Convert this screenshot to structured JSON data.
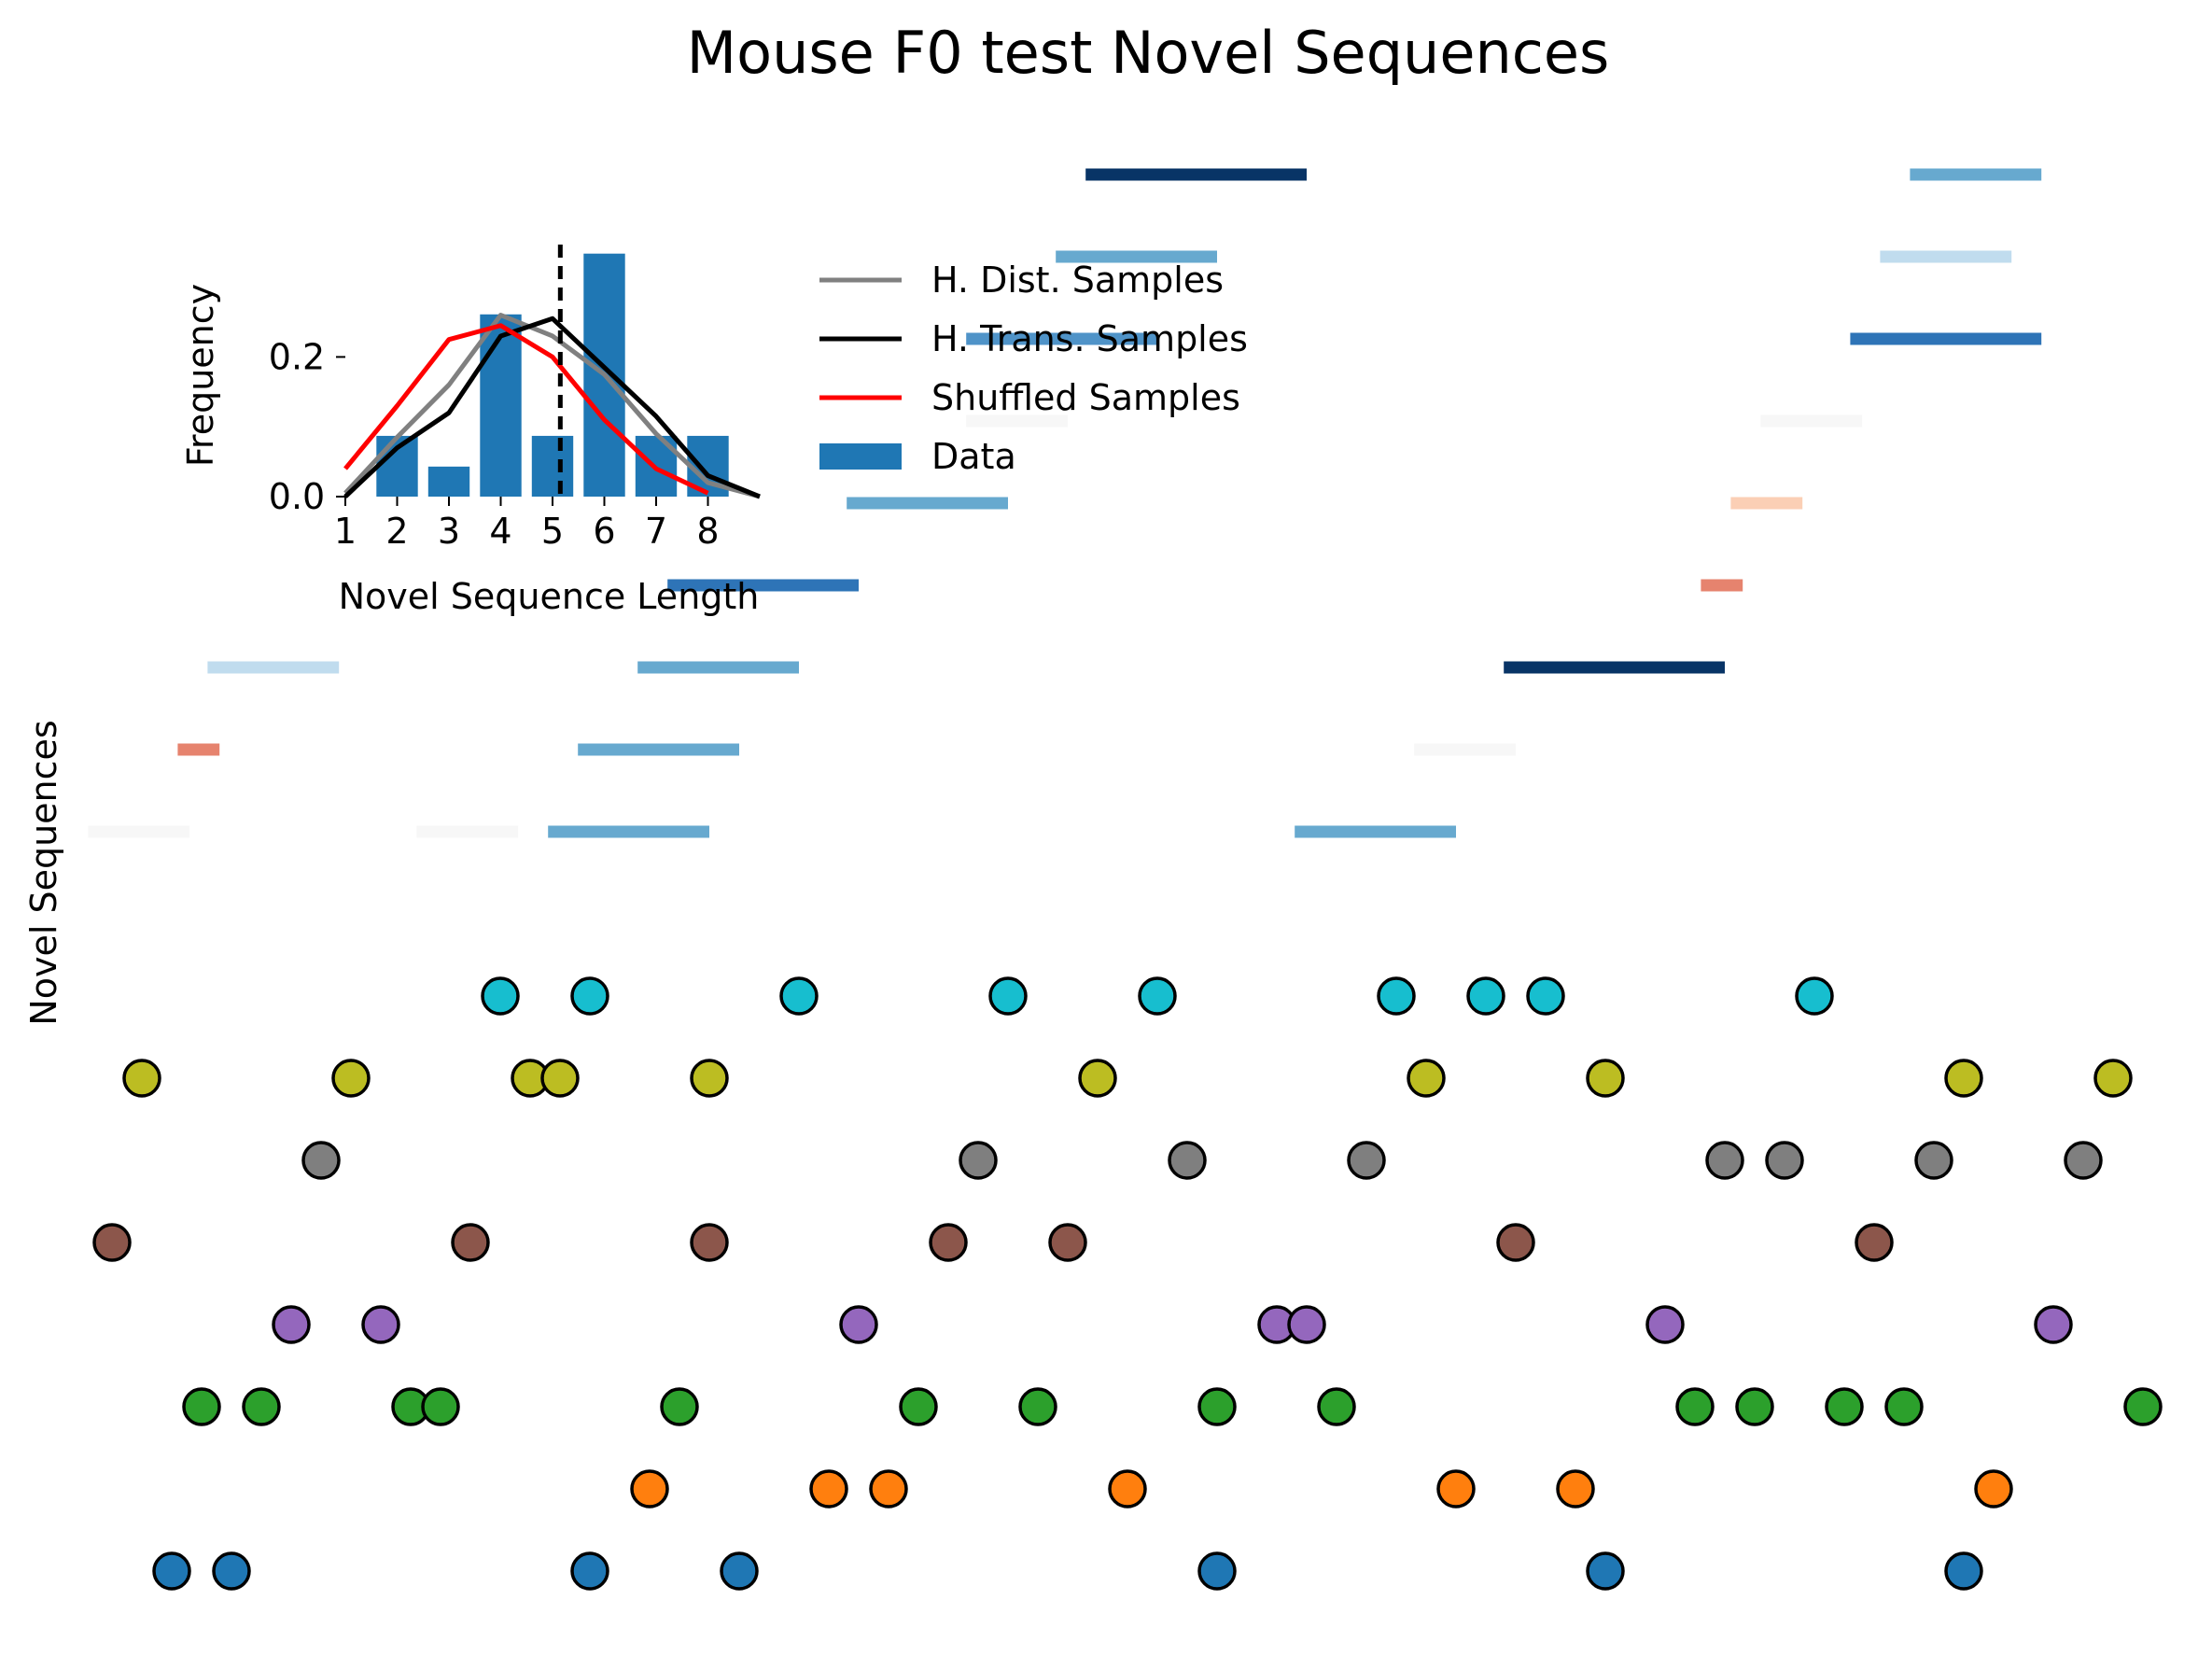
{
  "chart_data": [
    {
      "type": "scatter",
      "title": "Mouse F0 test Novel Sequences",
      "ylabel": "Novel Sequences",
      "xlim": [
        -0.5,
        34.5
      ],
      "ylim": [
        -0.7,
        17.7
      ],
      "grid": false,
      "axes_visible": false,
      "series": [
        {
          "color": "#1f77b4",
          "y": 0,
          "x": [
            1,
            2,
            8,
            10.5,
            18.5,
            25,
            31
          ]
        },
        {
          "color": "#ff7f0e",
          "y": 1,
          "x": [
            9,
            12,
            13,
            17,
            22.5,
            24.5,
            31.5
          ]
        },
        {
          "color": "#2ca02c",
          "y": 2,
          "x": [
            1.5,
            2.5,
            5,
            5.5,
            9.5,
            13.5,
            15.5,
            18.5,
            20.5,
            26.5,
            27.5,
            29,
            30,
            34
          ]
        },
        {
          "color": "#9467bd",
          "y": 3,
          "x": [
            3,
            4.5,
            12.5,
            19.5,
            20,
            26,
            32.5
          ]
        },
        {
          "color": "#8c564b",
          "y": 4,
          "x": [
            0,
            6,
            10,
            14,
            16,
            23.5,
            29.5
          ]
        },
        {
          "color": "#7f7f7f",
          "y": 5,
          "x": [
            3.5,
            14.5,
            18,
            21,
            27,
            28,
            30.5,
            33
          ]
        },
        {
          "color": "#bcbd22",
          "y": 6,
          "x": [
            0.5,
            4,
            7,
            7.5,
            10,
            16.5,
            22,
            25,
            31,
            33.5
          ]
        },
        {
          "color": "#17becf",
          "y": 7,
          "x": [
            6.5,
            8,
            11.5,
            15,
            17.5,
            21.5,
            23,
            24,
            28.5
          ]
        }
      ],
      "segments": [
        {
          "y": 9,
          "x0": -0.4,
          "x1": 1.3,
          "color": "#f7f7f7"
        },
        {
          "y": 9,
          "x0": 5.1,
          "x1": 6.8,
          "color": "#f7f7f7"
        },
        {
          "y": 9,
          "x0": 7.3,
          "x1": 10,
          "color": "#67a9cf"
        },
        {
          "y": 9,
          "x0": 19.8,
          "x1": 22.5,
          "color": "#67a9cf"
        },
        {
          "y": 10,
          "x0": 1.1,
          "x1": 1.8,
          "color": "#e6836e"
        },
        {
          "y": 10,
          "x0": 7.8,
          "x1": 10.5,
          "color": "#67a9cf"
        },
        {
          "y": 10,
          "x0": 21.8,
          "x1": 23.5,
          "color": "#f7f7f7"
        },
        {
          "y": 11,
          "x0": 1.6,
          "x1": 3.8,
          "color": "#c0dcee"
        },
        {
          "y": 11,
          "x0": 8.8,
          "x1": 11.5,
          "color": "#67a9cf"
        },
        {
          "y": 11,
          "x0": 23.3,
          "x1": 27,
          "color": "#083466"
        },
        {
          "y": 12,
          "x0": 9.3,
          "x1": 12.5,
          "color": "#2e74b7"
        },
        {
          "y": 12,
          "x0": 26.6,
          "x1": 27.3,
          "color": "#e6836e"
        },
        {
          "y": 13,
          "x0": 12.3,
          "x1": 15,
          "color": "#67a9cf"
        },
        {
          "y": 13,
          "x0": 27.1,
          "x1": 28.3,
          "color": "#fbcfb5"
        },
        {
          "y": 14,
          "x0": 14.3,
          "x1": 16,
          "color": "#f7f7f7"
        },
        {
          "y": 14,
          "x0": 27.6,
          "x1": 29.3,
          "color": "#f7f7f7"
        },
        {
          "y": 15,
          "x0": 14.3,
          "x1": 17.5,
          "color": "#4f93c8"
        },
        {
          "y": 15,
          "x0": 29.1,
          "x1": 32.3,
          "color": "#2e74b7"
        },
        {
          "y": 16,
          "x0": 15.8,
          "x1": 18.5,
          "color": "#67a9cf"
        },
        {
          "y": 16,
          "x0": 29.6,
          "x1": 31.8,
          "color": "#c0dcee"
        },
        {
          "y": 17,
          "x0": 16.3,
          "x1": 20,
          "color": "#083466"
        },
        {
          "y": 17,
          "x0": 30.1,
          "x1": 32.3,
          "color": "#67a9cf"
        }
      ]
    },
    {
      "type": "bar",
      "xlabel": "Novel Sequence Length",
      "ylabel": "Frequency",
      "categories": [
        "1",
        "2",
        "3",
        "4",
        "5",
        "6",
        "7",
        "8"
      ],
      "x_ticks": [
        1,
        2,
        3,
        4,
        5,
        6,
        7,
        8
      ],
      "y_ticks": [
        "0.0",
        "0.2"
      ],
      "xlim": [
        1,
        9
      ],
      "ylim": [
        0,
        0.36
      ],
      "bars": {
        "name": "Data",
        "color": "#1f77b4",
        "x": [
          2,
          3,
          4,
          5,
          6,
          7,
          8
        ],
        "values": [
          0.087,
          0.043,
          0.261,
          0.087,
          0.348,
          0.087,
          0.087
        ]
      },
      "mean_line": {
        "x": 5.15,
        "style": "dashed",
        "color": "#000000"
      },
      "series": [
        {
          "name": "H. Dist. Samples",
          "color": "#808080",
          "x": [
            1,
            2,
            3,
            4,
            5,
            6,
            7,
            8,
            9
          ],
          "values": [
            0.005,
            0.085,
            0.16,
            0.26,
            0.23,
            0.175,
            0.09,
            0.02,
            0.0
          ]
        },
        {
          "name": "H. Trans. Samples",
          "color": "#000000",
          "x": [
            1,
            2,
            3,
            4,
            5,
            6,
            7,
            8,
            9
          ],
          "values": [
            0.0,
            0.07,
            0.12,
            0.23,
            0.255,
            0.185,
            0.115,
            0.03,
            0.0
          ]
        },
        {
          "name": "Shuffled Samples",
          "color": "#ff0000",
          "x": [
            1,
            2,
            3,
            4,
            5,
            6,
            7,
            8
          ],
          "values": [
            0.04,
            0.13,
            0.225,
            0.245,
            0.2,
            0.11,
            0.04,
            0.005
          ]
        }
      ],
      "legend": {
        "placement": "right of inset",
        "entries": [
          {
            "label": "H. Dist. Samples",
            "kind": "line",
            "color": "#808080"
          },
          {
            "label": "H. Trans. Samples",
            "kind": "line",
            "color": "#000000"
          },
          {
            "label": "Shuffled Samples",
            "kind": "line",
            "color": "#ff0000"
          },
          {
            "label": "Data",
            "kind": "patch",
            "color": "#1f77b4"
          }
        ]
      }
    }
  ]
}
